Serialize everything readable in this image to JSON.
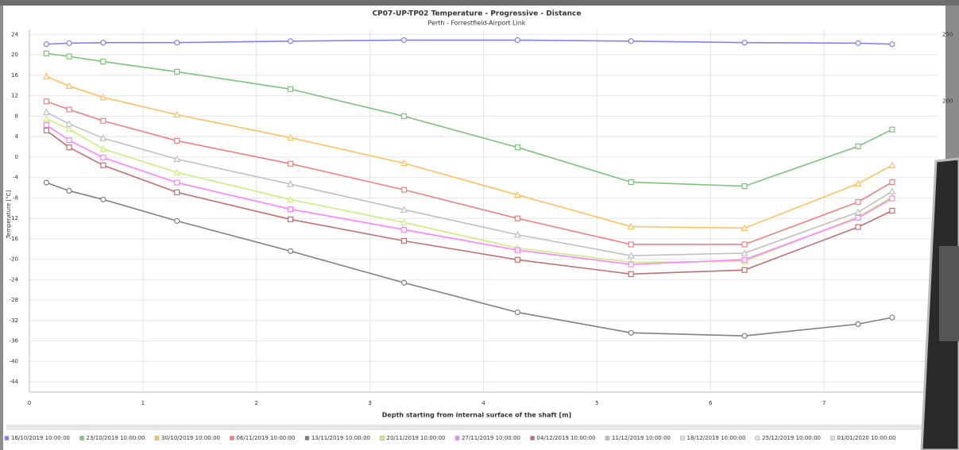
{
  "chart_data": {
    "type": "line",
    "title": "CP07-UP-TP02 Temperature - Progressive - Distance",
    "subtitle": "Perth - Forrestfield-Airport Link",
    "x_label": "Depth starting from internal surface of the shaft [m]",
    "y_label": "Temperature [°C]",
    "x": [
      0.15,
      0.35,
      0.65,
      1.3,
      2.3,
      3.3,
      4.3,
      5.3,
      6.3,
      7.3,
      7.6
    ],
    "xlim": [
      0,
      8
    ],
    "xticks": [
      0,
      1,
      2,
      3,
      4,
      5,
      6,
      7
    ],
    "ylim": [
      -46,
      25
    ],
    "yticks": [
      -44,
      -40,
      -36,
      -32,
      -28,
      -24,
      -20,
      -16,
      -12,
      -8,
      -4,
      0,
      4,
      8,
      12,
      16,
      20,
      24
    ],
    "y2lim": [
      -18,
      254
    ],
    "y2ticks": [
      200,
      250
    ],
    "grid": true,
    "series": [
      {
        "name": "16/10/2019 10:00:00",
        "color": "#8080ff",
        "marker": "circle",
        "values": [
          22.1,
          22.3,
          22.4,
          22.4,
          22.7,
          22.9,
          22.9,
          22.7,
          22.4,
          22.3,
          22.1
        ]
      },
      {
        "name": "23/10/2019 10:00:00",
        "color": "#7cc47c",
        "marker": "square",
        "values": [
          20.3,
          19.7,
          18.7,
          16.7,
          13.3,
          8.0,
          1.9,
          -4.9,
          -5.7,
          2.1,
          5.4
        ]
      },
      {
        "name": "30/10/2019 10:00:00",
        "color": "#ffc060",
        "marker": "triangle",
        "values": [
          15.8,
          13.9,
          11.7,
          8.3,
          3.8,
          -1.2,
          -7.4,
          -13.6,
          -13.9,
          -5.2,
          -1.6
        ]
      },
      {
        "name": "06/11/2019 10:00:00",
        "color": "#f08080",
        "marker": "square",
        "values": [
          10.9,
          9.3,
          7.1,
          3.2,
          -1.3,
          -6.4,
          -12.0,
          -17.1,
          -17.1,
          -8.8,
          -4.9
        ]
      },
      {
        "name": "13/11/2019 10:00:00",
        "color": "#808080",
        "marker": "circle",
        "values": [
          -5.0,
          -6.6,
          -8.3,
          -12.5,
          -18.4,
          -24.6,
          -30.4,
          -34.4,
          -35.0,
          -32.7,
          -31.4
        ]
      },
      {
        "name": "20/11/2019 10:00:00",
        "color": "#c8f07c",
        "marker": "triangle",
        "values": [
          7.5,
          5.5,
          1.6,
          -3.0,
          -8.3,
          -12.8,
          -17.8,
          -20.6,
          -20.4,
          -11.7,
          -7.8
        ]
      },
      {
        "name": "27/11/2019 10:00:00",
        "color": "#ff80ff",
        "marker": "square",
        "values": [
          6.3,
          3.3,
          -0.1,
          -5.0,
          -10.2,
          -14.2,
          -18.2,
          -21.0,
          -20.1,
          -11.9,
          -8.1
        ]
      },
      {
        "name": "04/12/2019 10:00:00",
        "color": "#c07070",
        "marker": "square",
        "values": [
          5.2,
          1.9,
          -1.6,
          -6.9,
          -12.2,
          -16.4,
          -20.1,
          -22.9,
          -22.1,
          -13.7,
          -10.5
        ]
      },
      {
        "name": "11/12/2019 10:00:00",
        "color": "#c0c0c0",
        "marker": "triangle",
        "values": [
          8.8,
          6.5,
          3.7,
          -0.4,
          -5.3,
          -10.3,
          -15.2,
          -19.3,
          -18.8,
          -10.8,
          -6.7
        ]
      },
      {
        "name": "18/12/2019 10:00:00",
        "color": "#e0e0e0",
        "marker": "circle",
        "values": [
          null,
          null,
          null,
          null,
          null,
          null,
          null,
          null,
          null,
          null,
          null
        ]
      },
      {
        "name": "25/12/2019 10:00:00",
        "color": "#e0e0e0",
        "marker": "circle",
        "values": [
          null,
          null,
          null,
          null,
          null,
          null,
          null,
          null,
          null,
          null,
          null
        ]
      },
      {
        "name": "01/01/2020 10:00:00",
        "color": "#e0e0e0",
        "marker": "circle",
        "values": [
          null,
          null,
          null,
          null,
          null,
          null,
          null,
          null,
          null,
          null,
          null
        ]
      }
    ]
  }
}
